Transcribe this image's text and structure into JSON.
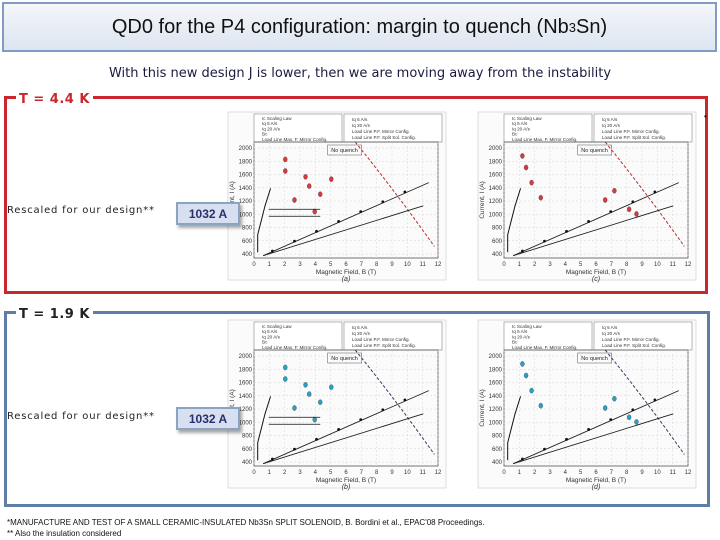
{
  "slide": {
    "title": "QD0 for the P4 configuration: margin to quench (Nb",
    "title_sub": "3",
    "title_end": "Sn)",
    "subtitle": "With this new design J is lower, then we are moving away from the instability",
    "bullet": "•"
  },
  "sections": [
    {
      "temperature": "T = 4.4 K",
      "rescaled_text": "Rescaled for our design**",
      "current": "1032 A",
      "color": "#c9272d"
    },
    {
      "temperature": "T = 1.9 K",
      "rescaled_text": "Rescaled for our design**",
      "current": "1032 A",
      "color": "#5e7ea6"
    }
  ],
  "plots": {
    "ylabel": "Current, I (A)",
    "xlabel": "Magnetic Field, B (T)",
    "legend_left": [
      "Ic Scaling Law",
      "Iq 5 A/s",
      "Iq 20 A/s",
      "Bc",
      "Load Line Max. F. Mirror Config."
    ],
    "legend_right": [
      "Iq 5 A/s",
      "Iq 20 A/s",
      "Load Line P.F. Mirror Config.",
      "Load Line P.F. Split Sol. Config."
    ],
    "no_quench": "No quench",
    "x_ticks": [
      "0",
      "1",
      "2",
      "3",
      "4",
      "5",
      "6",
      "7",
      "8",
      "9",
      "10",
      "11",
      "12"
    ],
    "y_ticks_a": [
      "2000",
      "1800",
      "1600",
      "1400",
      "1200",
      "1000",
      "800",
      "600",
      "400"
    ],
    "captions": [
      "(a)",
      "(c)",
      "(b)",
      "(d)"
    ]
  },
  "footnotes": {
    "line1": "*MANUFACTURE AND TEST OF A SMALL CERAMIC-INSULATED Nb3Sn SPLIT SOLENOID, B. Bordini et al., EPAC'08 Proceedings.",
    "line2": "** Also the insulation considered"
  }
}
